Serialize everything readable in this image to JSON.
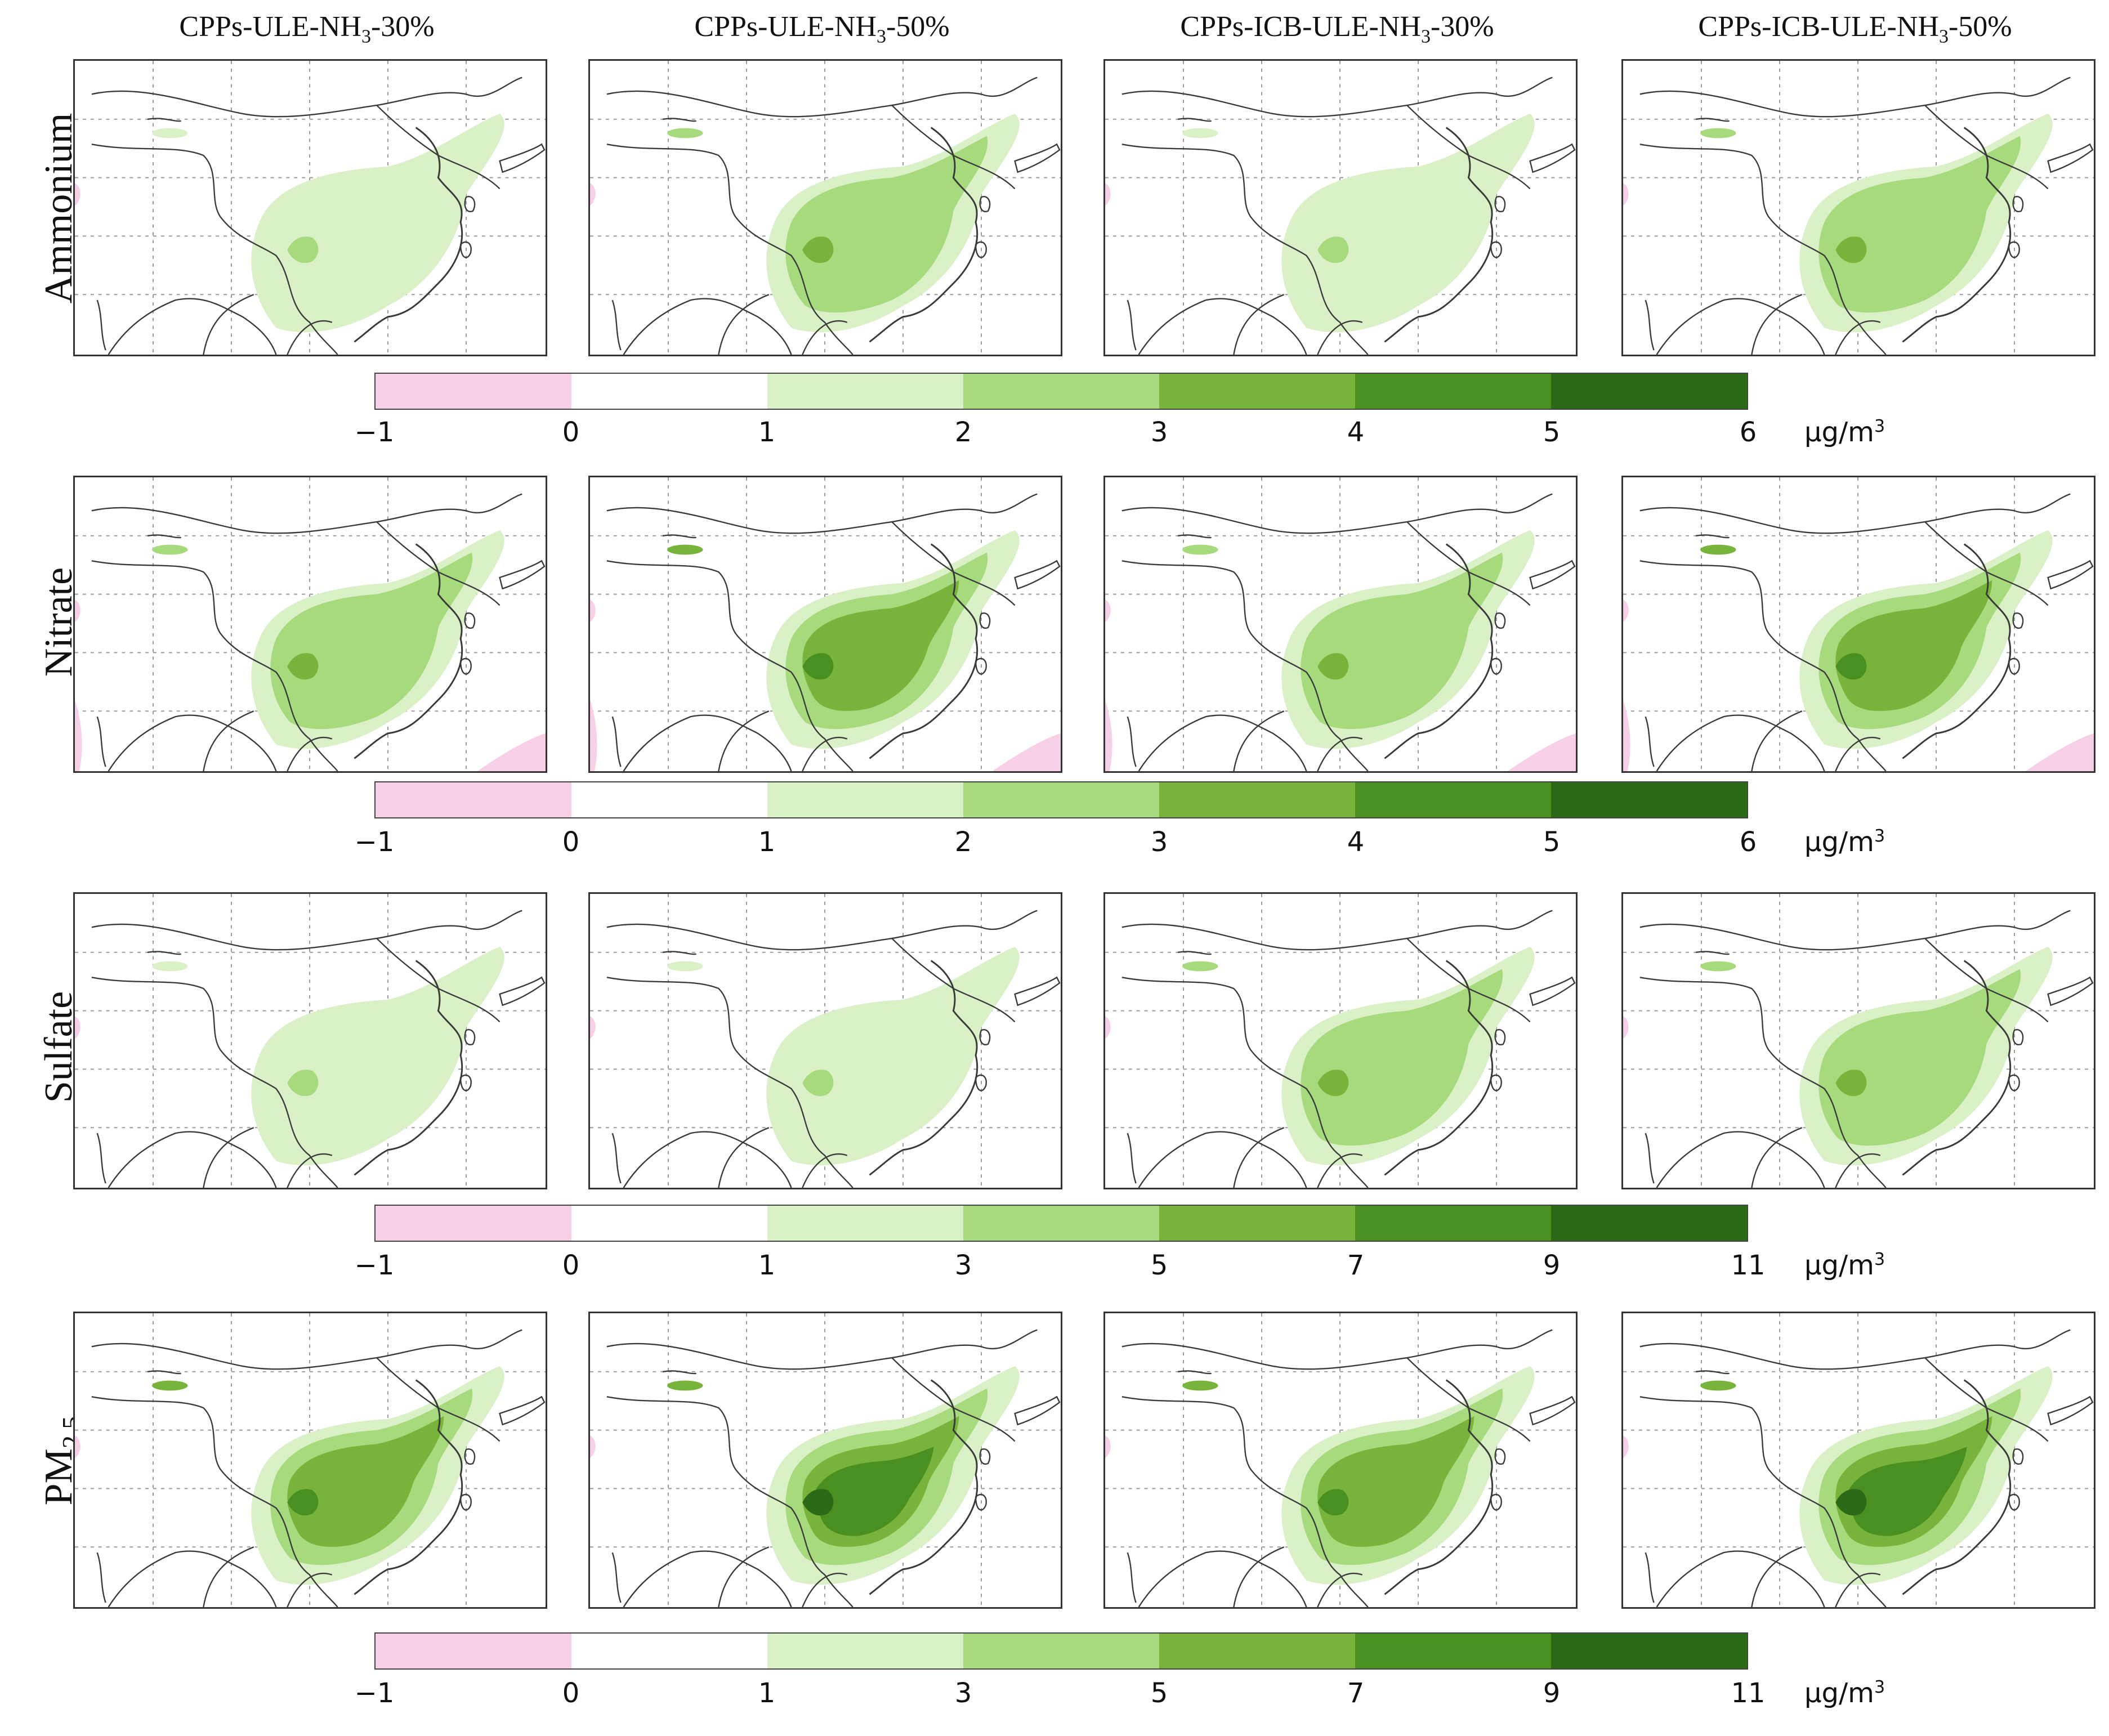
{
  "columns": [
    {
      "pre": "CPPs-ULE-NH",
      "sub": "3",
      "post": "-30%"
    },
    {
      "pre": "CPPs-ULE-NH",
      "sub": "3",
      "post": "-50%"
    },
    {
      "pre": "CPPs-ICB-ULE-NH",
      "sub": "3",
      "post": "-30%"
    },
    {
      "pre": "CPPs-ICB-ULE-NH",
      "sub": "3",
      "post": "-50%"
    }
  ],
  "rows": [
    {
      "label_main": "Ammonium",
      "label_sub": "",
      "colorbar_ticks": [
        "−1",
        "0",
        "1",
        "2",
        "3",
        "4",
        "5",
        "6"
      ]
    },
    {
      "label_main": "Nitrate",
      "label_sub": "",
      "colorbar_ticks": [
        "−1",
        "0",
        "1",
        "2",
        "3",
        "4",
        "5",
        "6"
      ]
    },
    {
      "label_main": "Sulfate",
      "label_sub": "",
      "colorbar_ticks": [
        "−1",
        "0",
        "1",
        "3",
        "5",
        "7",
        "9",
        "11"
      ]
    },
    {
      "label_main": "PM",
      "label_sub": "2.5",
      "colorbar_ticks": [
        "−1",
        "0",
        "1",
        "3",
        "5",
        "7",
        "9",
        "11"
      ]
    }
  ],
  "unit": {
    "base": "μg/m",
    "sup": "3"
  },
  "colors": {
    "neg": "#f7cfe6",
    "zero": "#ffffff",
    "c1": "#daf0c7",
    "c2": "#a7d97d",
    "c3": "#78b43c",
    "c4": "#4a8f22",
    "c5": "#2d6a17",
    "border": "#333333"
  },
  "intensity": [
    [
      1.0,
      1.6,
      1.25,
      1.6
    ],
    [
      2.2,
      3.1,
      1.9,
      2.8
    ],
    [
      0.9,
      0.9,
      1.7,
      1.9
    ],
    [
      3.0,
      3.6,
      3.4,
      3.7
    ]
  ]
}
